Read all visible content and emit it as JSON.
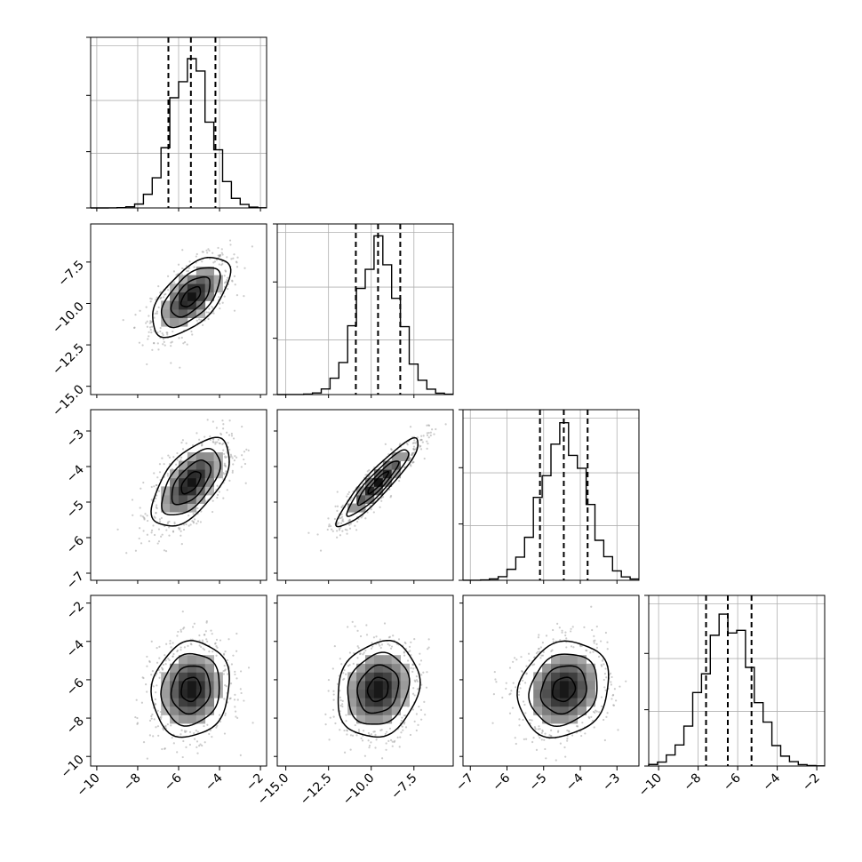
{
  "chart_data": {
    "type": "corner",
    "parameters": 4,
    "axis_labels": [
      "",
      "",
      "",
      ""
    ],
    "grid": true,
    "colors": {
      "hist": "#000000",
      "scatter": "#9a9a9a",
      "contour": "#000000",
      "quantile": "#000000",
      "grid": "#b0b0b0"
    },
    "params": [
      {
        "name": "",
        "range": [
          -10.3,
          -1.7
        ],
        "ticks": [
          -10,
          -8,
          -6,
          -4,
          -2
        ],
        "tick_labels": [
          "−10",
          "−8",
          "−6",
          "−4",
          "−2"
        ],
        "mean": -5.4,
        "sd": 0.95,
        "quantiles": [
          -6.5,
          -5.4,
          -4.2
        ]
      },
      {
        "name": "",
        "range": [
          -15.5,
          -5.2
        ],
        "ticks": [
          -15.0,
          -12.5,
          -10.0,
          -7.5
        ],
        "tick_labels": [
          "−15.0",
          "−12.5",
          "−10.0",
          "−7.5"
        ],
        "mean": -9.6,
        "sd": 1.2,
        "quantiles": [
          -10.9,
          -9.6,
          -8.3
        ]
      },
      {
        "name": "",
        "range": [
          -7.2,
          -2.4
        ],
        "ticks": [
          -7,
          -6,
          -5,
          -4,
          -3
        ],
        "tick_labels": [
          "−7",
          "−6",
          "−5",
          "−4",
          "−3"
        ],
        "mean": -4.45,
        "sd": 0.62,
        "quantiles": [
          -5.1,
          -4.45,
          -3.8
        ]
      },
      {
        "name": "",
        "range": [
          -10.5,
          -1.6
        ],
        "ticks": [
          -10,
          -8,
          -6,
          -4,
          -2
        ],
        "tick_labels": [
          "−10",
          "−8",
          "−6",
          "−4",
          "−2"
        ],
        "mean": -6.5,
        "sd": 1.25,
        "quantiles": [
          -7.6,
          -6.5,
          -5.3
        ]
      }
    ],
    "correlations": [
      [
        1.0,
        0.6,
        0.6,
        0.1
      ],
      [
        0.6,
        1.0,
        0.92,
        0.15
      ],
      [
        0.6,
        0.92,
        1.0,
        0.15
      ],
      [
        0.1,
        0.15,
        0.15,
        1.0
      ]
    ],
    "contour_levels_sigma": [
      0.5,
      1.0,
      1.5,
      2.0
    ]
  }
}
